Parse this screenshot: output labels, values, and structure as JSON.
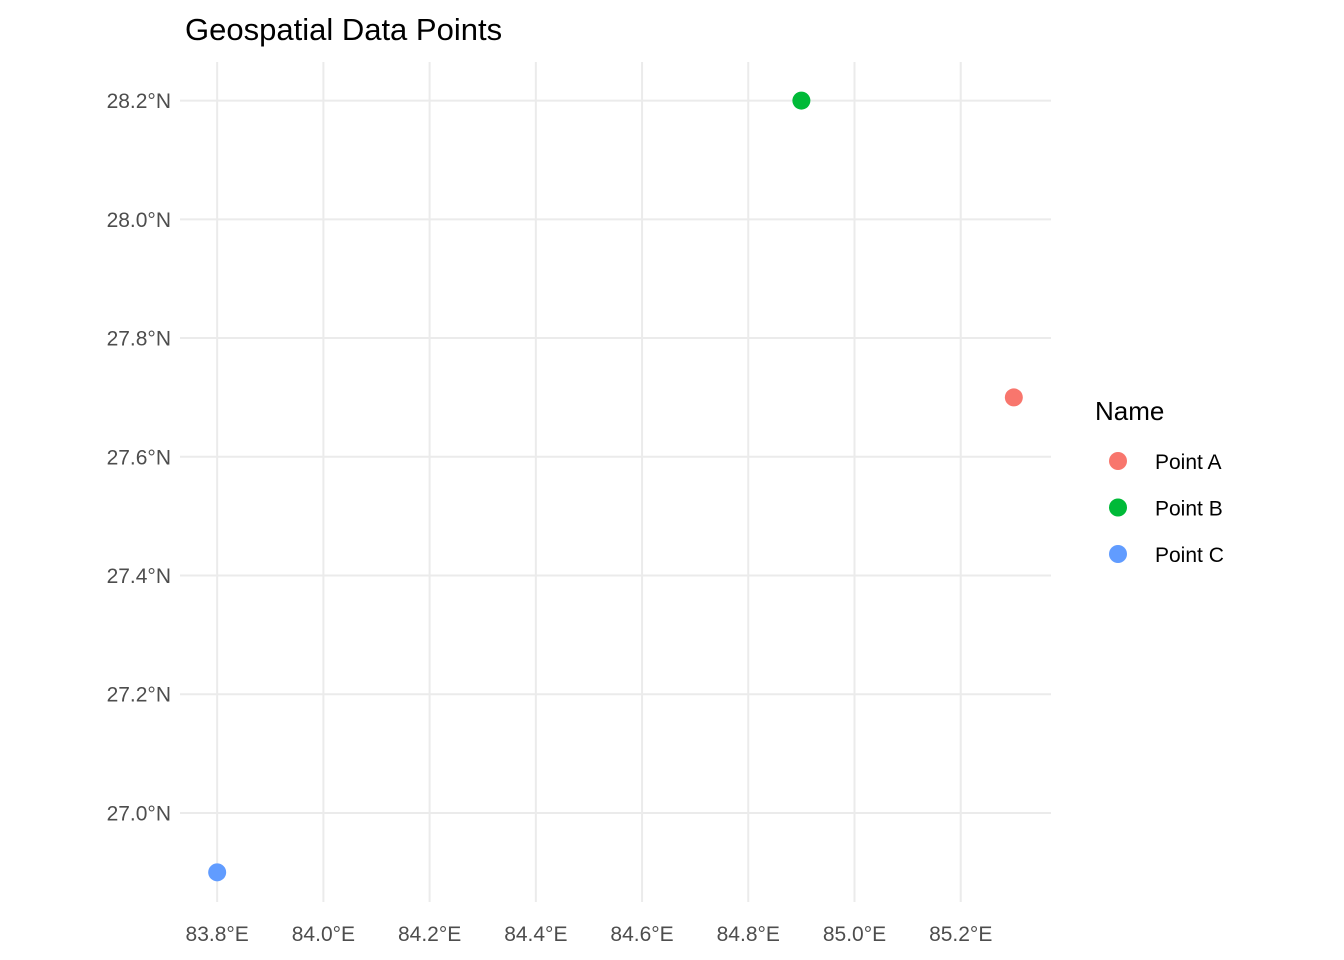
{
  "chart_data": {
    "type": "scatter",
    "title": "Geospatial Data Points",
    "xlabel": "",
    "ylabel": "",
    "x_ticks": [
      {
        "value": 83.8,
        "label": "83.8°E"
      },
      {
        "value": 84.0,
        "label": "84.0°E"
      },
      {
        "value": 84.2,
        "label": "84.2°E"
      },
      {
        "value": 84.4,
        "label": "84.4°E"
      },
      {
        "value": 84.6,
        "label": "84.6°E"
      },
      {
        "value": 84.8,
        "label": "84.8°E"
      },
      {
        "value": 85.0,
        "label": "85.0°E"
      },
      {
        "value": 85.2,
        "label": "85.2°E"
      }
    ],
    "y_ticks": [
      {
        "value": 27.0,
        "label": "27.0°N"
      },
      {
        "value": 27.2,
        "label": "27.2°N"
      },
      {
        "value": 27.4,
        "label": "27.4°N"
      },
      {
        "value": 27.6,
        "label": "27.6°N"
      },
      {
        "value": 27.8,
        "label": "27.8°N"
      },
      {
        "value": 28.0,
        "label": "28.0°N"
      },
      {
        "value": 28.2,
        "label": "28.2°N"
      }
    ],
    "xlim": [
      83.73,
      85.37
    ],
    "ylim": [
      26.85,
      28.265
    ],
    "grid": true,
    "legend": {
      "title": "Name",
      "placement": "right"
    },
    "series": [
      {
        "name": "Point A",
        "color": "#f8766d",
        "x": [
          85.3
        ],
        "y": [
          27.7
        ]
      },
      {
        "name": "Point B",
        "color": "#00ba38",
        "x": [
          84.9
        ],
        "y": [
          28.2
        ]
      },
      {
        "name": "Point C",
        "color": "#619cff",
        "x": [
          83.8
        ],
        "y": [
          26.9
        ]
      }
    ]
  }
}
